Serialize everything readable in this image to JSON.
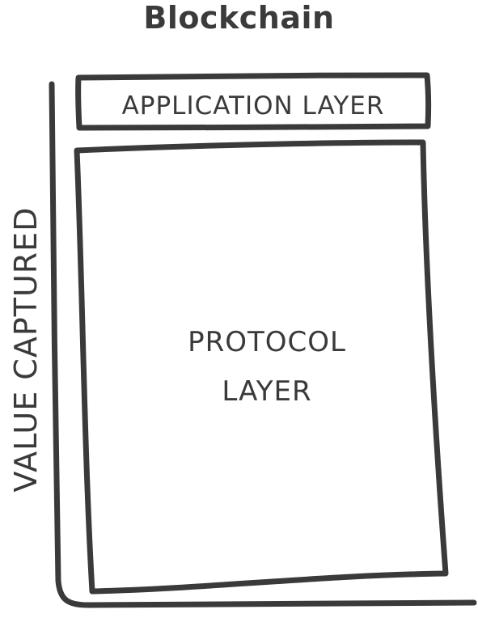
{
  "diagram": {
    "title": "Blockchain",
    "axis_label": "VALUE CAPTURED",
    "application_layer": "APPLICATION LAYER",
    "protocol_layer": {
      "line1": "PROTOCOL",
      "line2": "LAYER"
    },
    "colors": {
      "stroke": "#3a3a3a",
      "text": "#3a3a3a",
      "background": "#ffffff"
    }
  }
}
